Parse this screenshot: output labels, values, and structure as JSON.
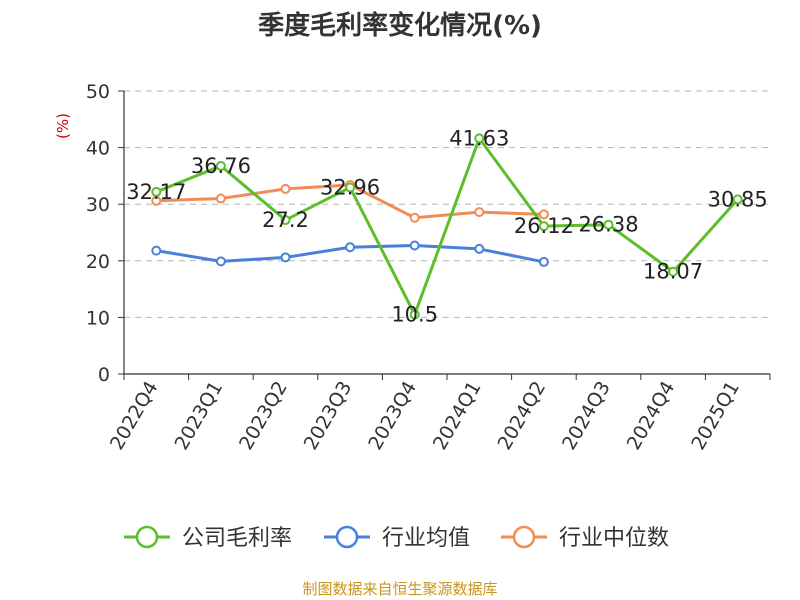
{
  "chart_data": {
    "type": "line",
    "title": "季度毛利率变化情况(%)",
    "ylabel": "(%)",
    "ylim": [
      0,
      50
    ],
    "yticks": [
      0,
      10,
      20,
      30,
      40,
      50
    ],
    "categories": [
      "2022Q4",
      "2023Q1",
      "2023Q2",
      "2023Q3",
      "2023Q4",
      "2024Q1",
      "2024Q2",
      "2024Q3",
      "2024Q4",
      "2025Q1"
    ],
    "grid": true,
    "legend_position": "bottom",
    "series": [
      {
        "name": "公司毛利率",
        "color": "#5cbf2a",
        "values": [
          32.17,
          36.76,
          27.2,
          32.96,
          10.5,
          41.63,
          26.12,
          26.38,
          18.07,
          30.85
        ],
        "labels": [
          "32.17",
          "36.76",
          "27.2",
          "32.96",
          "10.5",
          "41.63",
          "26.12",
          "26.38",
          "18.07",
          "30.85"
        ]
      },
      {
        "name": "行业均值",
        "color": "#4a7fdc",
        "values": [
          21.8,
          19.9,
          20.6,
          22.4,
          22.7,
          22.1,
          19.8,
          null,
          null,
          null
        ]
      },
      {
        "name": "行业中位数",
        "color": "#f28b54",
        "values": [
          30.6,
          31.0,
          32.7,
          33.4,
          27.6,
          28.6,
          28.2,
          null,
          null,
          null
        ]
      }
    ],
    "source": "制图数据来自恒生聚源数据库"
  }
}
